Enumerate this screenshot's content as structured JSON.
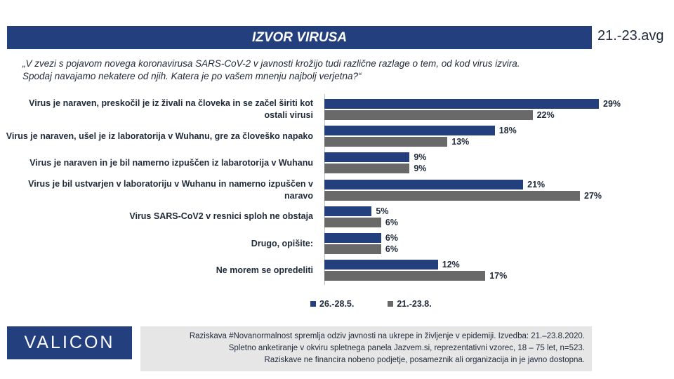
{
  "header": {
    "title": "IZVOR VIRUSA",
    "date": "21.-23.avg"
  },
  "question": "„V zvezi s pojavom novega koronavirusa  SARS-CoV-2 v javnosti krožijo tudi različne razlage o tem, od kod virus izvira. Spodaj navajamo nekatere od njih. Katera je po vašem mnenju najbolj verjetna?“",
  "chart_data": {
    "type": "bar",
    "orientation": "horizontal",
    "categories": [
      "Virus je naraven, preskočil je iz živali na človeka in se začel širiti kot ostali virusi",
      "Virus je naraven, ušel je iz laboratorija v Wuhanu, gre za človeško napako",
      "Virus je naraven in je bil namerno izpuščen iz labarotorija v Wuhanu",
      "Virus je bil ustvarjen v laboratoriju v Wuhanu in namerno izpuščen v naravo",
      "Virus SARS-CoV2 v resnici sploh ne obstaja",
      "Drugo, opišite:",
      "Ne morem se opredeliti"
    ],
    "series": [
      {
        "name": "26.-28.5.",
        "values": [
          29,
          18,
          9,
          21,
          5,
          6,
          12
        ],
        "color": "#233f7e"
      },
      {
        "name": "21.-23.8.",
        "values": [
          22,
          13,
          9,
          27,
          6,
          6,
          17
        ],
        "color": "#696969"
      }
    ],
    "value_suffix": "%",
    "xlim": [
      0,
      29
    ],
    "legend_position": "bottom",
    "grid": false
  },
  "logo": {
    "text": "VALICON"
  },
  "footer": {
    "lines": [
      "Raziskava #Novanormalnost spremlja odziv javnosti na ukrepe in življenje v epidemiji. Izvedba: 21.–23.8.2020.",
      "Spletno anketiranje v okviru spletnega panela Jazvem.si, reprezentativni vzorec, 18 – 75 let, n=523.",
      "Raziskave ne financira nobeno podjetje, posameznik ali organizacija in je javno dostopna."
    ]
  }
}
